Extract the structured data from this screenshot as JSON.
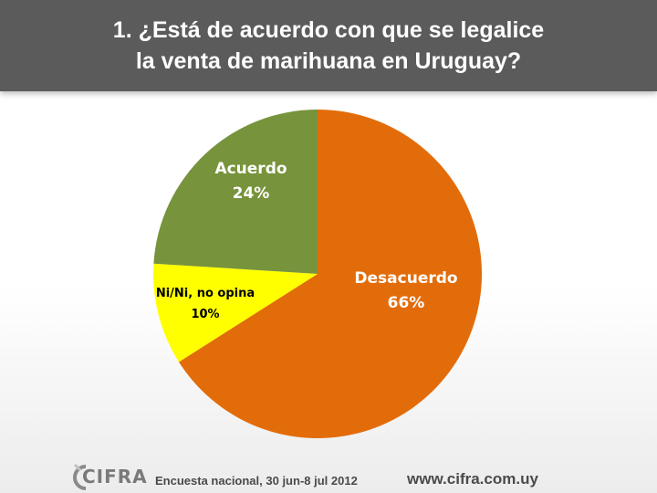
{
  "header": {
    "title_line1": "1.  ¿Está de acuerdo con que se legalice",
    "title_line2": "la venta de marihuana en Uruguay?"
  },
  "chart_data": {
    "type": "pie",
    "slices": [
      {
        "label": "Desacuerdo",
        "value": 66,
        "value_label": "66%",
        "color": "#e36c0a",
        "label_color": "#ffffff"
      },
      {
        "label": "Ni/Ni, no opina",
        "value": 10,
        "value_label": "10%",
        "color": "#ffff00",
        "label_color": "#000000"
      },
      {
        "label": "Acuerdo",
        "value": 24,
        "value_label": "24%",
        "color": "#77933c",
        "label_color": "#ffffff"
      }
    ],
    "start": "12 o'clock",
    "direction": "clockwise"
  },
  "footer": {
    "logo_text": "CIFRA",
    "note": "Encuesta nacional,  30 jun-8 jul 2012",
    "url": "www.cifra.com.uy"
  },
  "colors": {
    "header_bg": "#5b5b5b",
    "header_text": "#ffffff",
    "footer_text": "#4a4a4a"
  }
}
